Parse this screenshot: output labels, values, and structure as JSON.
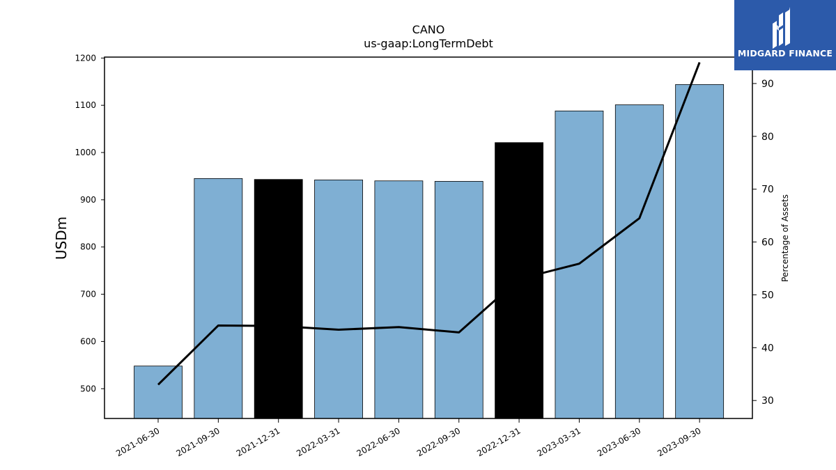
{
  "brand": {
    "name": "MIDGARD FINANCE",
    "logo_icon": "midgard-m-logo-icon",
    "background_color": "#2C5AAA",
    "text_color": "#FFFFFF"
  },
  "chart_data": {
    "type": "bar",
    "title": "CANO",
    "subtitle": "us-gaap:LongTermDebt",
    "ylabel": "USDm",
    "y2label": "Percentage of Assets",
    "categories": [
      "2021-06-30",
      "2021-09-30",
      "2021-12-31",
      "2022-03-31",
      "2022-06-30",
      "2022-09-30",
      "2022-12-31",
      "2023-03-31",
      "2023-06-30",
      "2023-09-30"
    ],
    "bar_values": [
      548,
      945,
      943,
      942,
      940,
      939,
      1021,
      1088,
      1101,
      1144
    ],
    "bar_colors": [
      "#7FAFD3",
      "#7FAFD3",
      "#000000",
      "#7FAFD3",
      "#7FAFD3",
      "#7FAFD3",
      "#000000",
      "#7FAFD3",
      "#7FAFD3",
      "#7FAFD3"
    ],
    "line_values": [
      33.0,
      44.2,
      44.1,
      43.4,
      43.9,
      42.9,
      53.0,
      55.9,
      64.5,
      94.0
    ],
    "line_color": "#000000",
    "ylim": [
      437,
      1202
    ],
    "y2lim": [
      26.6,
      95.0
    ],
    "yticks": [
      500,
      600,
      700,
      800,
      900,
      1000,
      1100,
      1200
    ],
    "y2ticks": [
      30,
      40,
      50,
      60,
      70,
      80,
      90
    ],
    "grid": false,
    "legend": "none"
  }
}
